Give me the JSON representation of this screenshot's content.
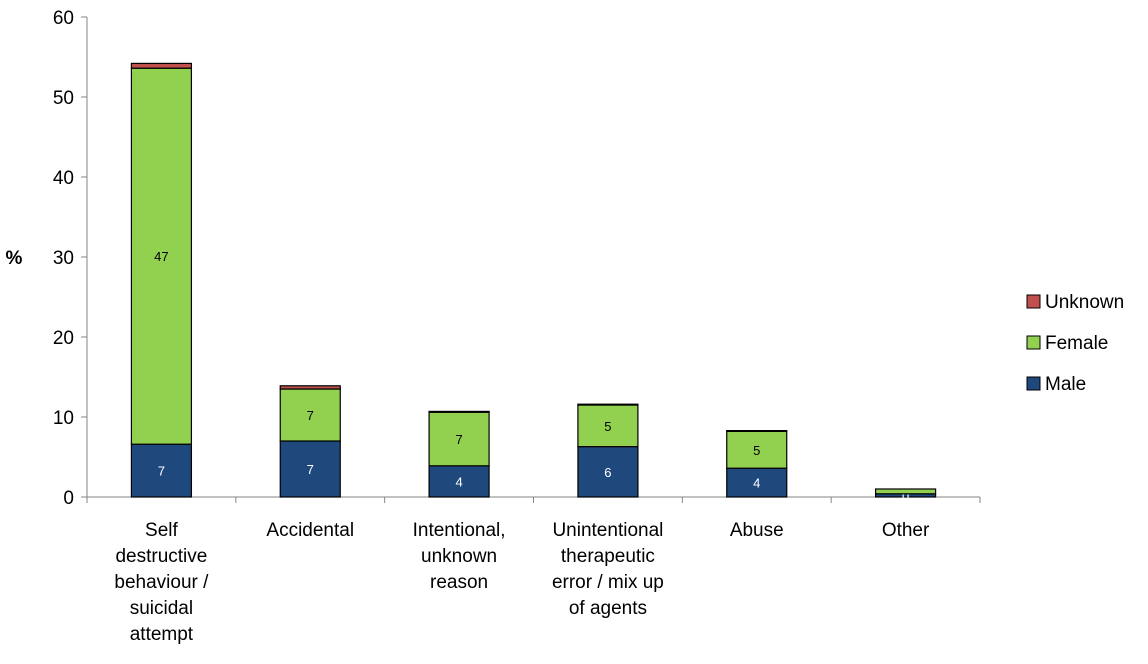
{
  "chart_data": {
    "type": "bar",
    "stacked": true,
    "ylabel": "%",
    "xlabel": "",
    "ylim": [
      0,
      60
    ],
    "yticks": [
      0,
      10,
      20,
      30,
      40,
      50,
      60
    ],
    "categories": [
      [
        "Self",
        "destructive",
        "behaviour /",
        "suicidal",
        "attempt"
      ],
      [
        "Accidental"
      ],
      [
        "Intentional,",
        "unknown",
        "reason"
      ],
      [
        "Unintentional",
        "therapeutic",
        "error / mix up",
        "of agents"
      ],
      [
        "Abuse"
      ],
      [
        "Other"
      ]
    ],
    "series": [
      {
        "name": "Male",
        "color": "#1F497D",
        "values": [
          6.6,
          7.0,
          3.9,
          6.3,
          3.6,
          0.4
        ],
        "labels": [
          "7",
          "7",
          "4",
          "6",
          "4",
          "0"
        ],
        "label_color": "#ffffff"
      },
      {
        "name": "Female",
        "color": "#92D050",
        "values": [
          47.0,
          6.5,
          6.7,
          5.2,
          4.6,
          0.6
        ],
        "labels": [
          "47",
          "7",
          "7",
          "5",
          "5",
          ""
        ],
        "label_color": "#000000"
      },
      {
        "name": "Unknown",
        "color": "#C0504D",
        "values": [
          0.6,
          0.4,
          0.1,
          0.1,
          0.1,
          0.0
        ],
        "labels": [
          "",
          "",
          "",
          "",
          "",
          ""
        ],
        "label_color": "#000000"
      }
    ],
    "legend_order": [
      "Unknown",
      "Female",
      "Male"
    ],
    "legend_position": "right",
    "grid": false
  }
}
